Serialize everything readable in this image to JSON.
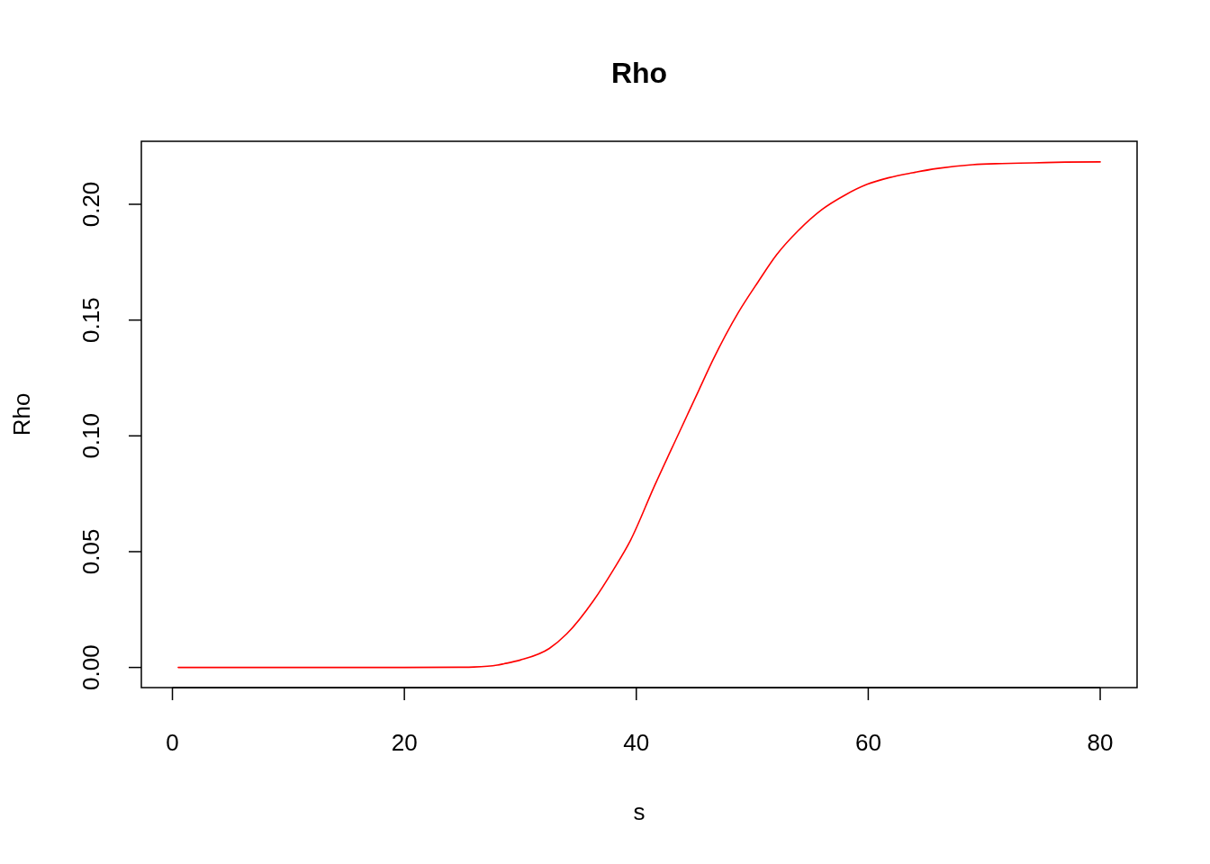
{
  "chart_data": {
    "type": "line",
    "title": "Rho",
    "xlabel": "s",
    "ylabel": "Rho",
    "xlim": [
      -2.68,
      83.18
    ],
    "ylim": [
      -0.0087,
      0.2272
    ],
    "xticks": [
      0,
      20,
      40,
      60,
      80
    ],
    "yticks": [
      {
        "value": 0,
        "label": "0.00"
      },
      {
        "value": 0.05,
        "label": "0.05"
      },
      {
        "value": 0.1,
        "label": "0.10"
      },
      {
        "value": 0.15,
        "label": "0.15"
      },
      {
        "value": 0.2,
        "label": "0.20"
      }
    ],
    "grid": false,
    "marker": "none",
    "line_style": "solid",
    "series": [
      {
        "color": "#ff0000",
        "x": [
          0.5,
          10,
          20,
          25,
          26,
          28,
          28.6,
          30,
          32.5,
          34,
          36.3,
          38,
          39.5,
          41.55,
          43.6,
          45.4,
          46.6,
          48.8,
          50.5,
          52.1,
          54,
          56,
          58,
          59.9,
          61.8,
          63.8,
          66,
          69,
          71.5,
          74.2,
          77,
          80
        ],
        "values": [
          0,
          0,
          0,
          0.0001,
          0.0002,
          0.001,
          0.0016,
          0.0032,
          0.0082,
          0.0145,
          0.0288,
          0.042,
          0.0549,
          0.0782,
          0.1004,
          0.1198,
          0.1327,
          0.1533,
          0.1665,
          0.1782,
          0.1888,
          0.1977,
          0.204,
          0.2086,
          0.2115,
          0.2136,
          0.2155,
          0.2171,
          0.2176,
          0.2179,
          0.2182,
          0.2183
        ]
      }
    ]
  }
}
